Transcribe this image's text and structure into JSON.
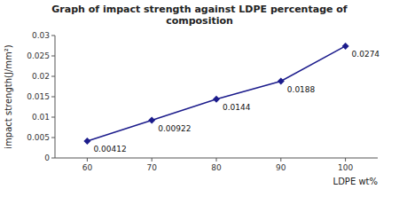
{
  "chart_data": {
    "type": "line",
    "title": "Graph of impact strength against LDPE percentage of\ncomposition",
    "x_label": "LDPE wt%",
    "y_label": "impact strength(J/mm²)",
    "x": [
      60,
      70,
      80,
      90,
      100
    ],
    "values": [
      0.00412,
      0.00922,
      0.0144,
      0.0188,
      0.0274
    ],
    "xlim": [
      55,
      105
    ],
    "ylim": [
      0,
      0.03
    ],
    "xticks": [
      60,
      70,
      80,
      90,
      100
    ],
    "yticks": [
      0,
      0.005,
      0.01,
      0.015,
      0.02,
      0.025,
      0.03
    ],
    "color": "#1C1C8C",
    "marker": "diamond",
    "data_labels": true,
    "grid": false
  }
}
